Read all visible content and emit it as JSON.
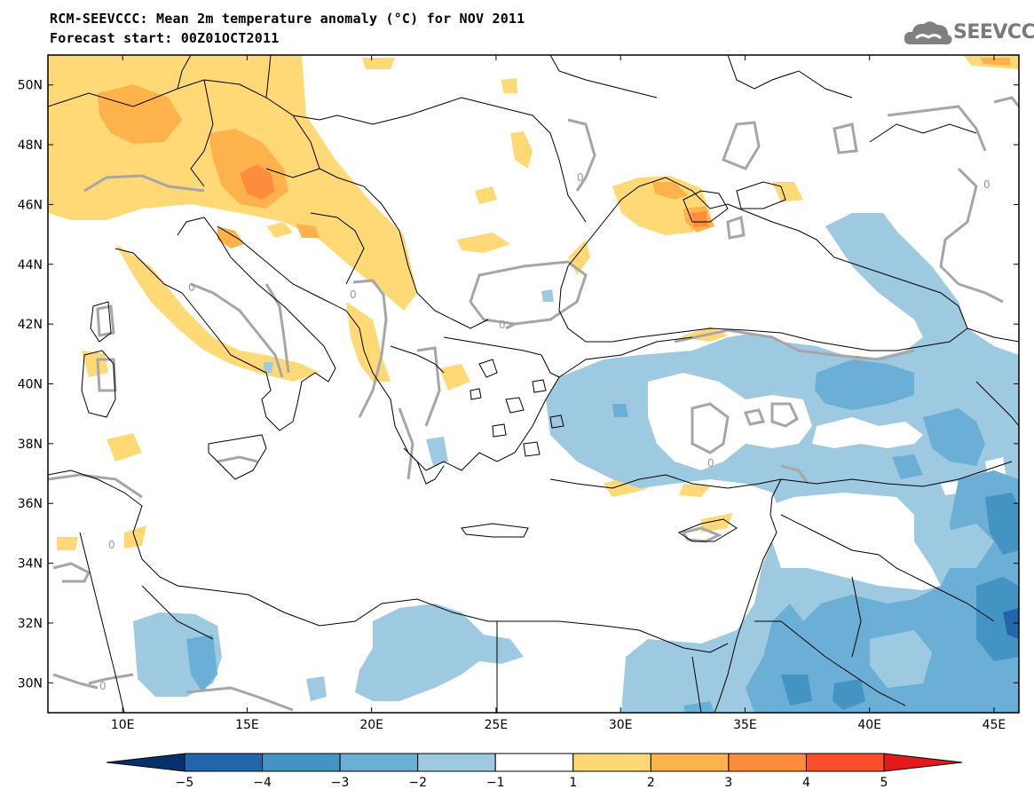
{
  "header": {
    "title_line1": "RCM-SEEVCCC: Mean 2m temperature anomaly (°C) for NOV 2011",
    "title_line2": "Forecast start: 00Z01OCT2011"
  },
  "logo": {
    "text": "SEEVCCC",
    "icon": "cloud-logo-icon"
  },
  "map": {
    "lon_range": [
      7,
      46
    ],
    "lat_range": [
      29,
      51
    ],
    "lon_ticks": [
      {
        "v": 10,
        "label": "10E"
      },
      {
        "v": 15,
        "label": "15E"
      },
      {
        "v": 20,
        "label": "20E"
      },
      {
        "v": 25,
        "label": "25E"
      },
      {
        "v": 30,
        "label": "30E"
      },
      {
        "v": 35,
        "label": "35E"
      },
      {
        "v": 40,
        "label": "40E"
      },
      {
        "v": 45,
        "label": "45E"
      }
    ],
    "lat_ticks": [
      {
        "v": 50,
        "label": "50N"
      },
      {
        "v": 48,
        "label": "48N"
      },
      {
        "v": 46,
        "label": "46N"
      },
      {
        "v": 44,
        "label": "44N"
      },
      {
        "v": 42,
        "label": "42N"
      },
      {
        "v": 40,
        "label": "40N"
      },
      {
        "v": 38,
        "label": "38N"
      },
      {
        "v": 36,
        "label": "36N"
      },
      {
        "v": 34,
        "label": "34N"
      },
      {
        "v": 32,
        "label": "32N"
      },
      {
        "v": 30,
        "label": "30N"
      }
    ],
    "zero_contour_label": "0"
  },
  "colorbar": {
    "boundaries": [
      -5,
      -4,
      -3,
      -2,
      -1,
      1,
      2,
      3,
      4,
      5
    ],
    "labels": [
      "−5",
      "−4",
      "−3",
      "−2",
      "−1",
      "1",
      "2",
      "3",
      "4",
      "5"
    ],
    "colors": [
      "#08306b",
      "#2166ac",
      "#4393c3",
      "#6baed6",
      "#9ecae1",
      "#ffffff",
      "#fed976",
      "#feb24c",
      "#fd8d3c",
      "#fc4e2a",
      "#e31a1c"
    ]
  },
  "colors": {
    "neg1": "#9ecae1",
    "neg2": "#6baed6",
    "neg3": "#4393c3",
    "neg4": "#2166ac",
    "pos1": "#fed976",
    "pos2": "#feb24c",
    "pos3": "#fd8d3c",
    "pos4": "#fc4e2a"
  }
}
